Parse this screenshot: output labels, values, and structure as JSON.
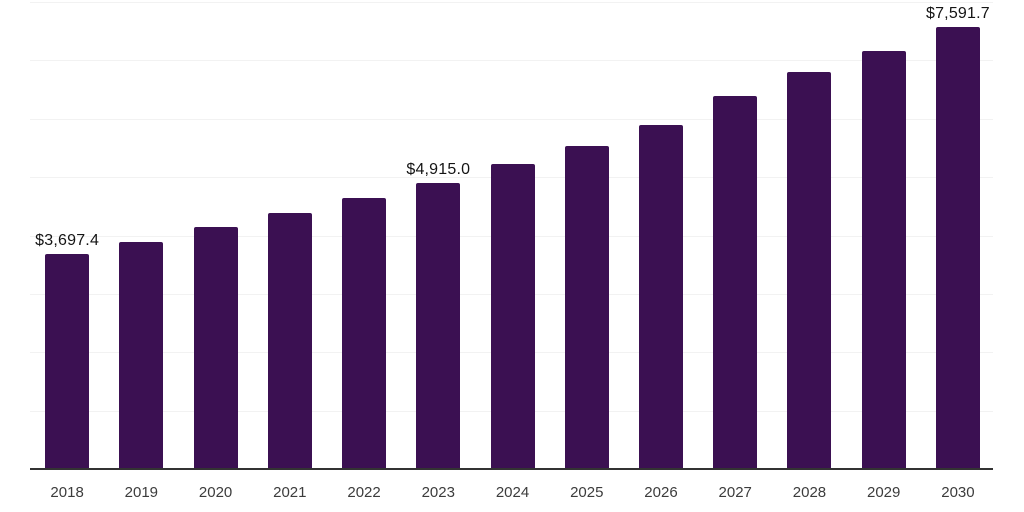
{
  "chart_data": {
    "type": "bar",
    "title": "",
    "xlabel": "",
    "ylabel": "",
    "categories": [
      "2018",
      "2019",
      "2020",
      "2021",
      "2022",
      "2023",
      "2024",
      "2025",
      "2026",
      "2027",
      "2028",
      "2029",
      "2030"
    ],
    "values": [
      3697.4,
      3910,
      4160,
      4400,
      4655,
      4915.0,
      5250,
      5550,
      5910,
      6410,
      6820,
      7170,
      7591.7
    ],
    "data_labels": [
      {
        "index": 0,
        "text": "$3,697.4"
      },
      {
        "index": 5,
        "text": "$4,915.0"
      },
      {
        "index": 12,
        "text": "$7,591.7"
      }
    ],
    "ylim": [
      0,
      8000
    ],
    "gridline_interval": 1000,
    "grid": true,
    "legend": false,
    "y_tick_labels_visible": false
  },
  "colors": {
    "background": "#ffffff",
    "bar": "#3b1052",
    "gridline": "#f2f2f2",
    "axis_line": "#333333",
    "tick_label": "#3c3c3c",
    "data_label": "#141414"
  }
}
